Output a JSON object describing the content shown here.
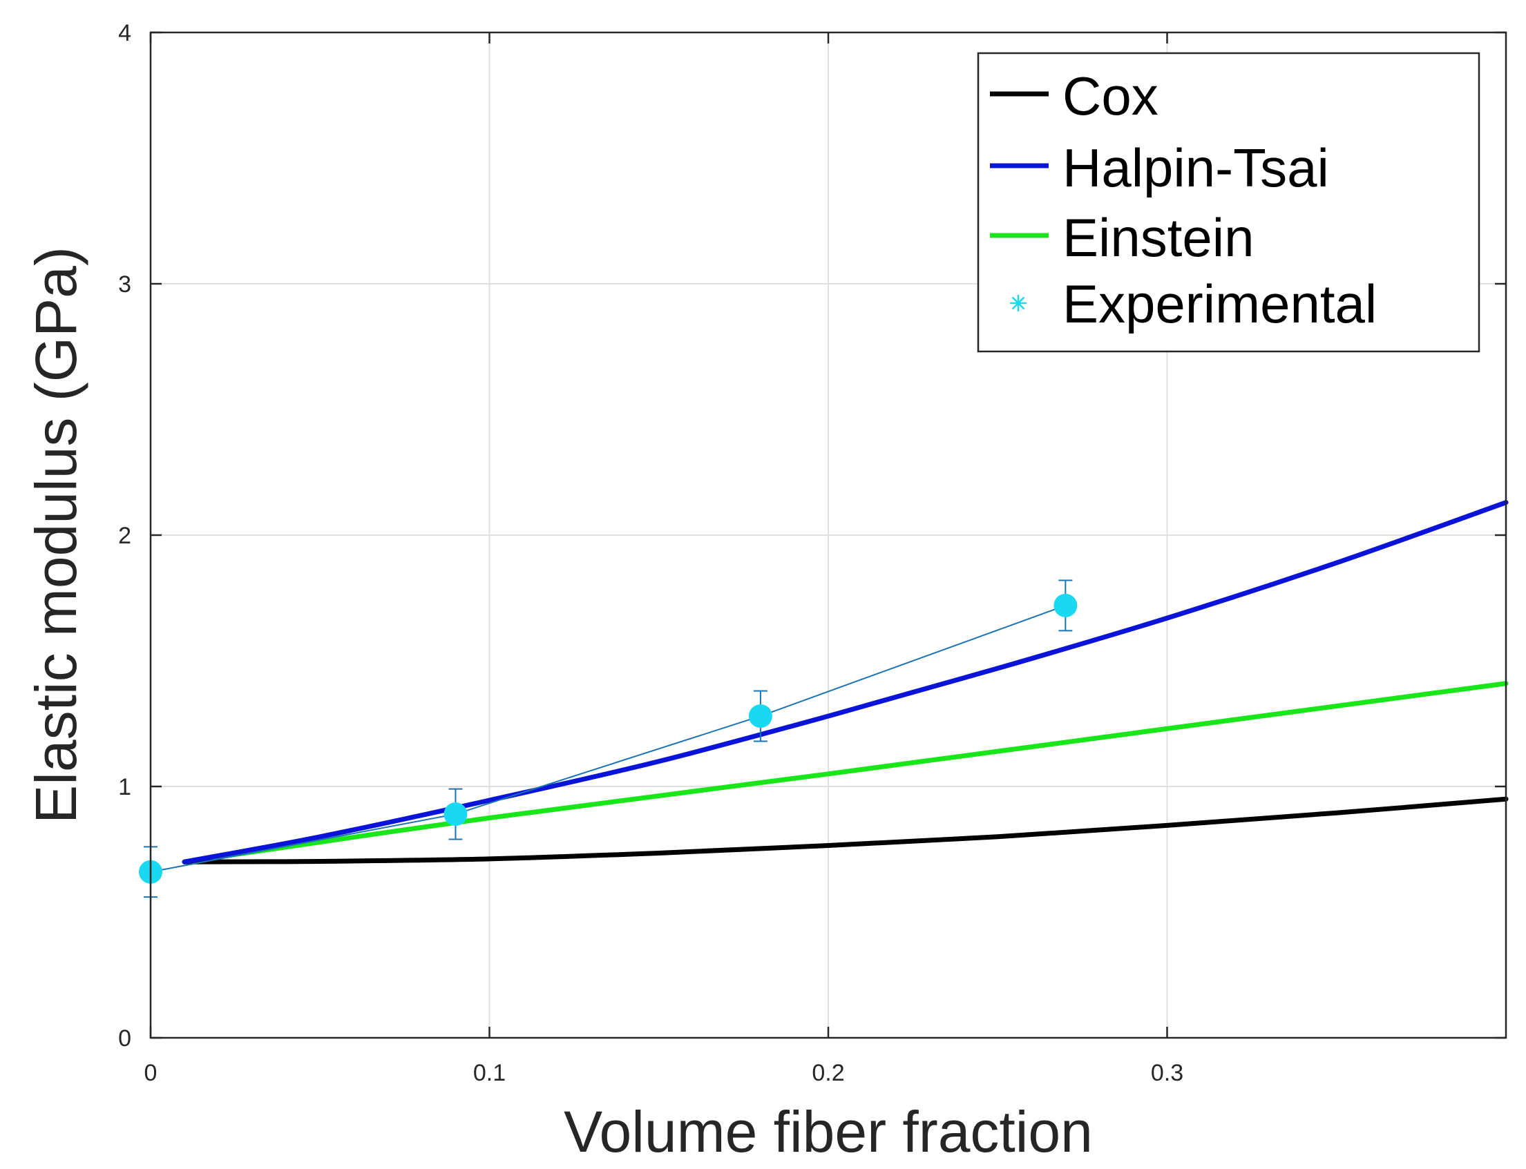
{
  "chart_data": {
    "type": "line",
    "title": "",
    "xlabel": "Volume fiber fraction",
    "ylabel": "Elastic modulus (GPa)",
    "xlim": [
      0,
      0.4
    ],
    "ylim": [
      0,
      4
    ],
    "xticks": [
      0,
      0.1,
      0.2,
      0.3
    ],
    "xtick_labels": [
      "0",
      "0.1",
      "0.2",
      "0.3"
    ],
    "yticks": [
      0,
      1,
      2,
      3,
      4
    ],
    "ytick_labels": [
      "0",
      "1",
      "2",
      "3",
      "4"
    ],
    "grid": true,
    "legend_position": "top-right",
    "series": [
      {
        "name": "Cox",
        "color": "#000000",
        "x": [
          0.01,
          0.05,
          0.1,
          0.15,
          0.2,
          0.25,
          0.3,
          0.35,
          0.4
        ],
        "y": [
          0.7,
          0.702,
          0.712,
          0.735,
          0.765,
          0.8,
          0.845,
          0.895,
          0.95
        ]
      },
      {
        "name": "Halpin-Tsai",
        "color": "#0a14d8",
        "x": [
          0.01,
          0.05,
          0.1,
          0.15,
          0.2,
          0.25,
          0.3,
          0.35,
          0.4
        ],
        "y": [
          0.7,
          0.8,
          0.945,
          1.1,
          1.28,
          1.47,
          1.67,
          1.89,
          2.13
        ]
      },
      {
        "name": "Einstein",
        "color": "#19e619",
        "x": [
          0.01,
          0.1,
          0.2,
          0.3,
          0.4
        ],
        "y": [
          0.7,
          0.875,
          1.05,
          1.23,
          1.41
        ]
      },
      {
        "name": "Experimental",
        "color": "#19d8f2",
        "line_color": "#1a73b3",
        "marker": "*",
        "x": [
          0,
          0.09,
          0.18,
          0.27
        ],
        "y": [
          0.66,
          0.89,
          1.28,
          1.72
        ],
        "error": [
          0.1,
          0.1,
          0.1,
          0.1
        ]
      }
    ]
  }
}
